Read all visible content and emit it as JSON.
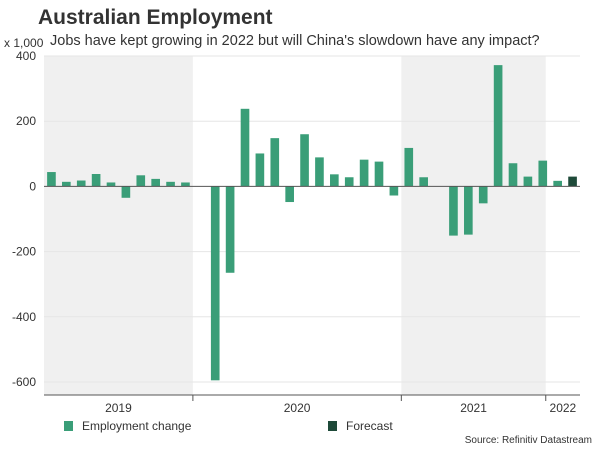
{
  "chart_data": {
    "type": "bar",
    "title": "Australian Employment",
    "subtitle": "Jobs have kept growing in 2022 but will China's slowdown have any impact?",
    "ylabel": "x 1,000",
    "ylim": [
      -640,
      400
    ],
    "yticks": [
      400,
      200,
      0,
      -200,
      -400,
      -600
    ],
    "ytick_labels": [
      "400",
      "200",
      "0",
      "-200",
      "-400",
      "-600"
    ],
    "year_labels": [
      "2019",
      "2020",
      "2021",
      "2022"
    ],
    "series": [
      {
        "name": "Employment change",
        "color": "#3a9e78",
        "values": [
          44,
          14,
          18,
          38,
          12,
          -35,
          34,
          23,
          14,
          12,
          null,
          -595,
          -265,
          238,
          101,
          148,
          -48,
          160,
          89,
          37,
          28,
          82,
          76,
          -28,
          118,
          28,
          null,
          -151,
          -148,
          -52,
          372,
          71,
          30,
          79,
          17,
          null
        ]
      },
      {
        "name": "Forecast",
        "color": "#1e4a39",
        "values": [
          null,
          null,
          null,
          null,
          null,
          null,
          null,
          null,
          null,
          null,
          null,
          null,
          null,
          null,
          null,
          null,
          null,
          null,
          null,
          null,
          null,
          null,
          null,
          null,
          null,
          null,
          null,
          null,
          null,
          null,
          null,
          null,
          null,
          null,
          null,
          30
        ]
      }
    ],
    "source": "Source: Refinitiv Datastream"
  }
}
